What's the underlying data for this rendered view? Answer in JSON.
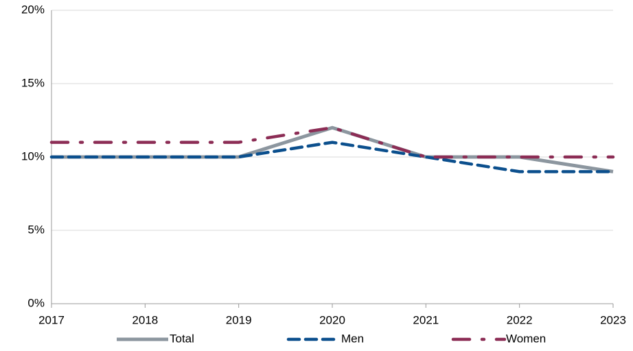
{
  "chart_data": {
    "type": "line",
    "categories": [
      "2017",
      "2018",
      "2019",
      "2020",
      "2021",
      "2022",
      "2023"
    ],
    "series": [
      {
        "name": "Total",
        "color": "#8c969f",
        "values": [
          10,
          10,
          10,
          12,
          10,
          10,
          9
        ]
      },
      {
        "name": "Men",
        "color": "#0b4f8d",
        "values": [
          10,
          10,
          10,
          11,
          10,
          9,
          9
        ]
      },
      {
        "name": "Women",
        "color": "#8c2d55",
        "values": [
          11,
          11,
          11,
          12,
          10,
          10,
          10
        ]
      }
    ],
    "ylim": [
      0,
      20
    ],
    "yticks": [
      {
        "value": 0,
        "label": "0%"
      },
      {
        "value": 5,
        "label": "5%"
      },
      {
        "value": 10,
        "label": "10%"
      },
      {
        "value": 15,
        "label": "15%"
      },
      {
        "value": 20,
        "label": "20%"
      }
    ],
    "grid": true,
    "legend": "bottom"
  }
}
